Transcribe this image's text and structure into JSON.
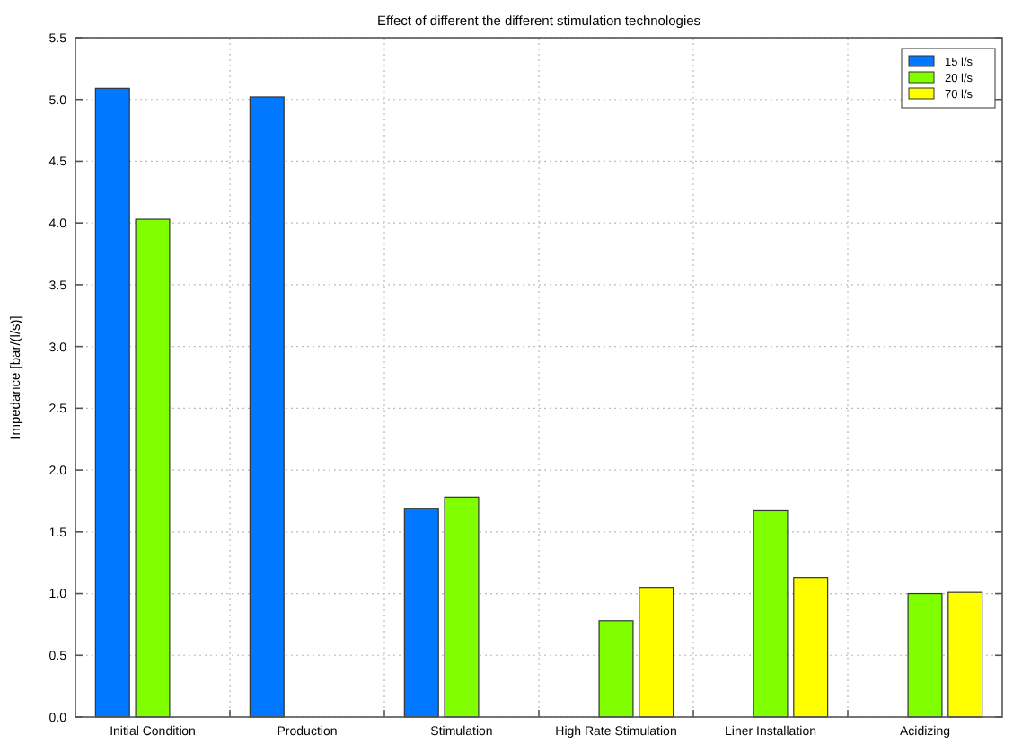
{
  "chart_data": {
    "type": "bar",
    "title": "Effect of different the different stimulation technologies",
    "ylabel": "Impedance [bar/(l/s)]",
    "categories": [
      "Initial Condition",
      "Production",
      "Stimulation",
      "High Rate Stimulation",
      "Liner Installation",
      "Acidizing"
    ],
    "series": [
      {
        "name": "15 l/s",
        "color": "#0078ff",
        "values": [
          5.09,
          5.02,
          1.69,
          null,
          null,
          null
        ]
      },
      {
        "name": "20 l/s",
        "color": "#80ff00",
        "values": [
          4.03,
          null,
          1.78,
          0.78,
          1.67,
          1.0
        ]
      },
      {
        "name": "70 l/s",
        "color": "#ffff00",
        "values": [
          null,
          null,
          null,
          1.05,
          1.13,
          1.01
        ]
      }
    ],
    "ylim": [
      0,
      5.5
    ],
    "yticks": [
      {
        "value": 0,
        "label": "0.0"
      },
      {
        "value": 0.5,
        "label": "0.5"
      },
      {
        "value": 1,
        "label": "1.0"
      },
      {
        "value": 1.5,
        "label": "1.5"
      },
      {
        "value": 2,
        "label": "2.0"
      },
      {
        "value": 2.5,
        "label": "2.5"
      },
      {
        "value": 3,
        "label": "3.0"
      },
      {
        "value": 3.5,
        "label": "3.5"
      },
      {
        "value": 4,
        "label": "4.0"
      },
      {
        "value": 4.5,
        "label": "4.5"
      },
      {
        "value": 5,
        "label": "5.0"
      },
      {
        "value": 5.5,
        "label": "5.5"
      }
    ],
    "grid": true,
    "legend": "top right"
  }
}
